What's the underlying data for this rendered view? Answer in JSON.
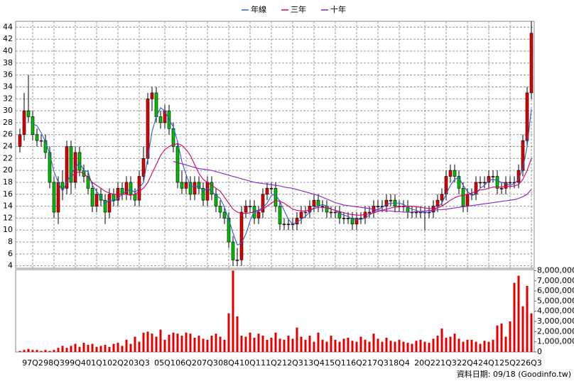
{
  "chart_data": {
    "type": "candlestick",
    "categories": [
      null,
      null,
      null,
      "97Q2",
      null,
      null,
      null,
      null,
      "98Q3",
      null,
      null,
      null,
      null,
      "99Q4",
      null,
      null,
      null,
      null,
      "01Q1",
      null,
      null,
      null,
      null,
      "02Q2",
      null,
      null,
      null,
      null,
      "03Q3",
      null,
      null,
      null,
      null,
      null,
      "05Q1",
      null,
      null,
      null,
      null,
      "06Q2",
      null,
      null,
      null,
      null,
      "07Q3",
      null,
      null,
      null,
      null,
      "08Q4",
      null,
      null,
      null,
      null,
      "10Q1",
      null,
      null,
      null,
      null,
      "11Q2",
      null,
      null,
      null,
      null,
      "12Q3",
      null,
      null,
      null,
      null,
      "13Q4",
      null,
      null,
      null,
      null,
      "15Q1",
      null,
      null,
      null,
      null,
      "16Q2",
      null,
      null,
      null,
      null,
      "17Q3",
      null,
      null,
      null,
      null,
      "18Q4",
      null,
      null,
      null,
      null,
      null,
      "20Q2",
      null,
      null,
      null,
      null,
      "21Q3",
      null,
      null,
      null,
      null,
      "22Q4",
      null,
      null,
      null,
      null,
      "24Q1",
      null,
      null,
      null,
      null,
      "25Q2",
      null,
      null,
      null,
      null,
      "26Q3"
    ],
    "open": [
      24,
      26,
      30,
      29,
      26,
      25,
      25,
      23,
      18,
      13,
      18,
      17,
      24,
      18,
      23,
      20,
      19,
      17,
      14,
      16,
      15,
      13,
      16,
      15,
      17,
      16,
      18,
      16,
      15,
      19,
      22,
      32,
      33,
      29,
      28,
      30,
      27,
      24,
      18,
      17,
      18,
      16,
      18,
      17,
      15,
      18,
      16,
      14,
      13,
      12,
      8,
      5,
      5,
      13,
      14,
      14,
      12,
      13,
      16,
      17,
      17,
      14,
      11,
      11,
      11,
      11,
      12,
      13,
      13,
      14,
      15,
      14,
      14,
      13,
      13,
      13,
      12,
      12,
      12,
      11,
      12,
      12,
      13,
      13,
      14,
      14,
      14,
      15,
      15,
      14,
      14,
      14,
      13,
      13,
      13,
      13,
      13,
      13,
      14,
      15,
      16,
      19,
      20,
      19,
      17,
      14,
      16,
      16,
      18,
      18,
      18,
      19,
      19,
      17,
      17,
      18,
      18,
      18,
      20,
      25,
      33
    ],
    "high": [
      27,
      33,
      36,
      30,
      27,
      26,
      26,
      24,
      19,
      19,
      20,
      25,
      25,
      24,
      24,
      21,
      20,
      18,
      17,
      17,
      16,
      17,
      17,
      18,
      18,
      19,
      19,
      17,
      20,
      24,
      33,
      34,
      34,
      30,
      31,
      31,
      28,
      25,
      20,
      19,
      19,
      19,
      19,
      18,
      19,
      19,
      17,
      15,
      14,
      13,
      9,
      7,
      14,
      15,
      15,
      15,
      14,
      17,
      18,
      18,
      18,
      15,
      12,
      12,
      12,
      13,
      14,
      14,
      15,
      16,
      16,
      15,
      15,
      14,
      14,
      14,
      13,
      13,
      13,
      13,
      13,
      14,
      14,
      15,
      15,
      15,
      16,
      16,
      16,
      15,
      15,
      15,
      14,
      14,
      14,
      14,
      14,
      15,
      16,
      17,
      20,
      21,
      21,
      20,
      18,
      17,
      17,
      19,
      19,
      19,
      20,
      20,
      20,
      18,
      19,
      19,
      19,
      21,
      26,
      34,
      45
    ],
    "low": [
      23,
      25,
      28,
      25,
      24,
      24,
      22,
      17,
      12,
      11,
      15,
      16,
      16,
      17,
      19,
      18,
      16,
      13,
      13,
      14,
      11,
      12,
      14,
      14,
      15,
      15,
      15,
      14,
      14,
      18,
      21,
      30,
      28,
      27,
      27,
      26,
      23,
      17,
      16,
      16,
      15,
      15,
      16,
      14,
      14,
      15,
      13,
      12,
      11,
      7,
      4,
      4,
      4,
      12,
      13,
      11,
      11,
      12,
      15,
      16,
      13,
      10,
      10,
      10,
      10,
      10,
      11,
      12,
      12,
      13,
      13,
      13,
      12,
      12,
      12,
      11,
      11,
      11,
      10,
      10,
      11,
      11,
      12,
      12,
      13,
      13,
      13,
      14,
      13,
      13,
      13,
      12,
      12,
      12,
      12,
      10,
      12,
      12,
      13,
      14,
      15,
      18,
      18,
      16,
      13,
      13,
      15,
      15,
      17,
      17,
      17,
      18,
      16,
      16,
      16,
      17,
      17,
      17,
      19,
      24,
      32
    ],
    "close": [
      26,
      30,
      29,
      26,
      25,
      25,
      23,
      18,
      13,
      18,
      17,
      24,
      18,
      23,
      20,
      19,
      17,
      14,
      16,
      15,
      13,
      16,
      15,
      17,
      16,
      18,
      16,
      15,
      19,
      22,
      32,
      33,
      29,
      28,
      30,
      27,
      24,
      18,
      17,
      18,
      16,
      18,
      17,
      15,
      18,
      16,
      14,
      13,
      12,
      8,
      5,
      5,
      13,
      14,
      14,
      12,
      13,
      16,
      17,
      17,
      14,
      11,
      11,
      11,
      11,
      12,
      13,
      13,
      14,
      15,
      14,
      14,
      13,
      13,
      13,
      12,
      12,
      12,
      11,
      12,
      12,
      13,
      13,
      14,
      14,
      14,
      15,
      15,
      14,
      14,
      14,
      13,
      13,
      13,
      13,
      13,
      13,
      14,
      15,
      16,
      19,
      20,
      19,
      17,
      14,
      16,
      16,
      18,
      18,
      18,
      19,
      19,
      17,
      17,
      18,
      18,
      18,
      20,
      25,
      33,
      43
    ],
    "up_color": "#e00000",
    "down_color": "#00c000",
    "series": [
      {
        "name": "年線",
        "color": "#2f5fd0",
        "values": [
          null,
          null,
          null,
          27.8,
          27.5,
          26.3,
          24.8,
          22.8,
          19.8,
          18,
          16.5,
          18,
          19.3,
          20.5,
          21.3,
          20,
          19.8,
          17.5,
          16.5,
          15.5,
          14.5,
          15,
          14.8,
          15.3,
          16,
          16.5,
          16.8,
          16.3,
          17,
          18,
          22,
          26.5,
          29,
          30.5,
          30,
          28.5,
          27.3,
          24.8,
          21.5,
          19.3,
          17.3,
          17.3,
          17.3,
          16.5,
          17,
          16.5,
          15.8,
          15.3,
          13.8,
          11.8,
          9.5,
          7.5,
          7.8,
          9.3,
          11.5,
          13.3,
          13.3,
          13.8,
          14.5,
          15.8,
          16,
          14.8,
          13.3,
          11.8,
          11,
          11.3,
          11.8,
          12.3,
          13,
          13.8,
          14,
          14.3,
          14,
          13.5,
          13.3,
          12.8,
          12.5,
          12.3,
          11.8,
          11.8,
          11.8,
          12,
          12.5,
          13,
          13.5,
          13.8,
          14.3,
          14.5,
          14.5,
          14.5,
          14.3,
          13.8,
          13.5,
          13.3,
          13,
          13,
          13,
          13.3,
          13.8,
          14.5,
          16,
          17.5,
          18.5,
          18.8,
          17.5,
          16.5,
          15.8,
          16,
          17,
          17.5,
          18.3,
          18.5,
          18.3,
          18,
          17.8,
          17.5,
          17.8,
          18.5,
          20.3,
          24,
          30.3
        ]
      },
      {
        "name": "三年",
        "color": "#d8006a",
        "values": [
          null,
          null,
          null,
          null,
          null,
          null,
          null,
          null,
          null,
          null,
          null,
          null,
          19,
          19.5,
          19.8,
          19.5,
          18.8,
          18,
          17.5,
          17,
          16.5,
          16.2,
          16,
          16,
          16,
          16,
          15.8,
          16,
          16.5,
          17,
          18,
          19.5,
          21,
          22.5,
          23.5,
          24,
          24.3,
          24.5,
          24.2,
          23.5,
          22.5,
          21,
          19.5,
          18.5,
          18,
          17.5,
          17,
          16.5,
          15.5,
          14.5,
          13.5,
          13,
          12.8,
          12.8,
          12.9,
          13,
          13.2,
          13.5,
          14,
          14.5,
          15,
          14.8,
          14.5,
          14,
          13.5,
          13.3,
          13.2,
          13.2,
          13.4,
          13.6,
          13.8,
          13.8,
          13.7,
          13.5,
          13.3,
          13.1,
          12.9,
          12.7,
          12.6,
          12.5,
          12.5,
          12.6,
          12.7,
          12.9,
          13.1,
          13.3,
          13.5,
          13.7,
          13.8,
          13.9,
          14,
          14,
          14,
          13.9,
          13.8,
          13.7,
          13.6,
          13.6,
          13.7,
          14,
          14.5,
          15,
          15.4,
          15.7,
          15.8,
          16,
          16.2,
          16.5,
          16.7,
          16.8,
          17,
          17.2,
          17.2,
          17.2,
          17.3,
          17.3,
          17.4,
          17.6,
          18.5,
          20,
          22
        ]
      },
      {
        "name": "十年",
        "color": "#8a1fc8",
        "values": [
          null,
          null,
          null,
          null,
          null,
          null,
          null,
          null,
          null,
          null,
          null,
          null,
          null,
          null,
          null,
          null,
          null,
          null,
          null,
          null,
          null,
          null,
          null,
          null,
          null,
          null,
          null,
          null,
          null,
          null,
          null,
          null,
          null,
          null,
          null,
          null,
          21.5,
          21.3,
          21.1,
          20.9,
          20.7,
          20.5,
          20.3,
          20.2,
          20.1,
          20,
          19.8,
          19.6,
          19.4,
          19.2,
          19,
          18.8,
          18.6,
          18.4,
          18.2,
          18,
          17.9,
          17.8,
          17.7,
          17.6,
          17.5,
          17.4,
          17.2,
          17.1,
          17,
          16.8,
          16.6,
          16.4,
          16.2,
          16,
          15.8,
          15.5,
          15.2,
          14.9,
          14.6,
          14.4,
          14.2,
          14.1,
          14,
          13.9,
          13.8,
          13.7,
          13.6,
          13.5,
          13.4,
          13.3,
          13.2,
          13.2,
          13.1,
          13.1,
          13,
          13,
          13,
          13.1,
          13.1,
          13.2,
          13.3,
          13.3,
          13.4,
          13.4,
          13.5,
          13.6,
          13.7,
          13.8,
          13.9,
          14,
          14.1,
          14.2,
          14.3,
          14.4,
          14.5,
          14.6,
          14.7,
          14.8,
          14.9,
          15,
          15.1,
          15.3,
          15.6,
          16,
          16.8
        ]
      }
    ],
    "volume": {
      "color": "#e00000",
      "values": [
        100000,
        200000,
        300000,
        200000,
        200000,
        100000,
        200000,
        100000,
        200000,
        400000,
        600000,
        400000,
        600000,
        800000,
        500000,
        900000,
        700000,
        800000,
        500000,
        600000,
        700000,
        500000,
        800000,
        900000,
        600000,
        1200000,
        800000,
        1500000,
        1000000,
        1900000,
        2000000,
        1800000,
        1500000,
        2200000,
        1200000,
        1700000,
        1900000,
        1800000,
        1600000,
        1900000,
        1800000,
        1400000,
        1600000,
        1300000,
        1200000,
        1600000,
        1800000,
        1500000,
        1200000,
        3800000,
        8000000,
        3500000,
        1600000,
        1500000,
        1900000,
        1400000,
        1800000,
        1600000,
        1200000,
        1400000,
        1900000,
        1300000,
        1200000,
        1600000,
        1300000,
        2400000,
        1500000,
        1200000,
        1600000,
        1000000,
        1900000,
        1200000,
        1000000,
        1600000,
        1200000,
        1000000,
        1300000,
        1400000,
        1100000,
        1000000,
        1500000,
        1200000,
        1000000,
        1800000,
        1300000,
        1000000,
        1400000,
        1100000,
        1000000,
        1200000,
        1000000,
        900000,
        800000,
        1100000,
        1200000,
        1000000,
        900000,
        1300000,
        1600000,
        2300000,
        1400000,
        1500000,
        1800000,
        1300000,
        1000000,
        1200000,
        1200000,
        1000000,
        800000,
        1100000,
        1000000,
        1200000,
        2600000,
        2800000,
        1500000,
        3000000,
        6800000,
        7500000,
        4500000,
        6500000,
        3800000
      ]
    },
    "ylim": [
      3.6,
      45
    ],
    "yticks": [
      4,
      6,
      8,
      10,
      12,
      14,
      16,
      18,
      20,
      22,
      24,
      26,
      28,
      30,
      32,
      34,
      36,
      38,
      40,
      42,
      44
    ],
    "y2lim": [
      0,
      8100000
    ],
    "y2ticks": [
      {
        "value": 0,
        "label": "0"
      },
      {
        "value": 1000000,
        "label": "1,000,000"
      },
      {
        "value": 2000000,
        "label": "2,000,000"
      },
      {
        "value": 3000000,
        "label": "3,000,000"
      },
      {
        "value": 4000000,
        "label": "4,000,000"
      },
      {
        "value": 5000000,
        "label": "5,000,000"
      },
      {
        "value": 6000000,
        "label": "6,000,000"
      },
      {
        "value": 7000000,
        "label": "7,000,000"
      },
      {
        "value": 8000000,
        "label": "8,000,000"
      }
    ],
    "grid": true,
    "legend": "top",
    "source": "資料日期: 09/18  (Goodinfo.tw)"
  }
}
